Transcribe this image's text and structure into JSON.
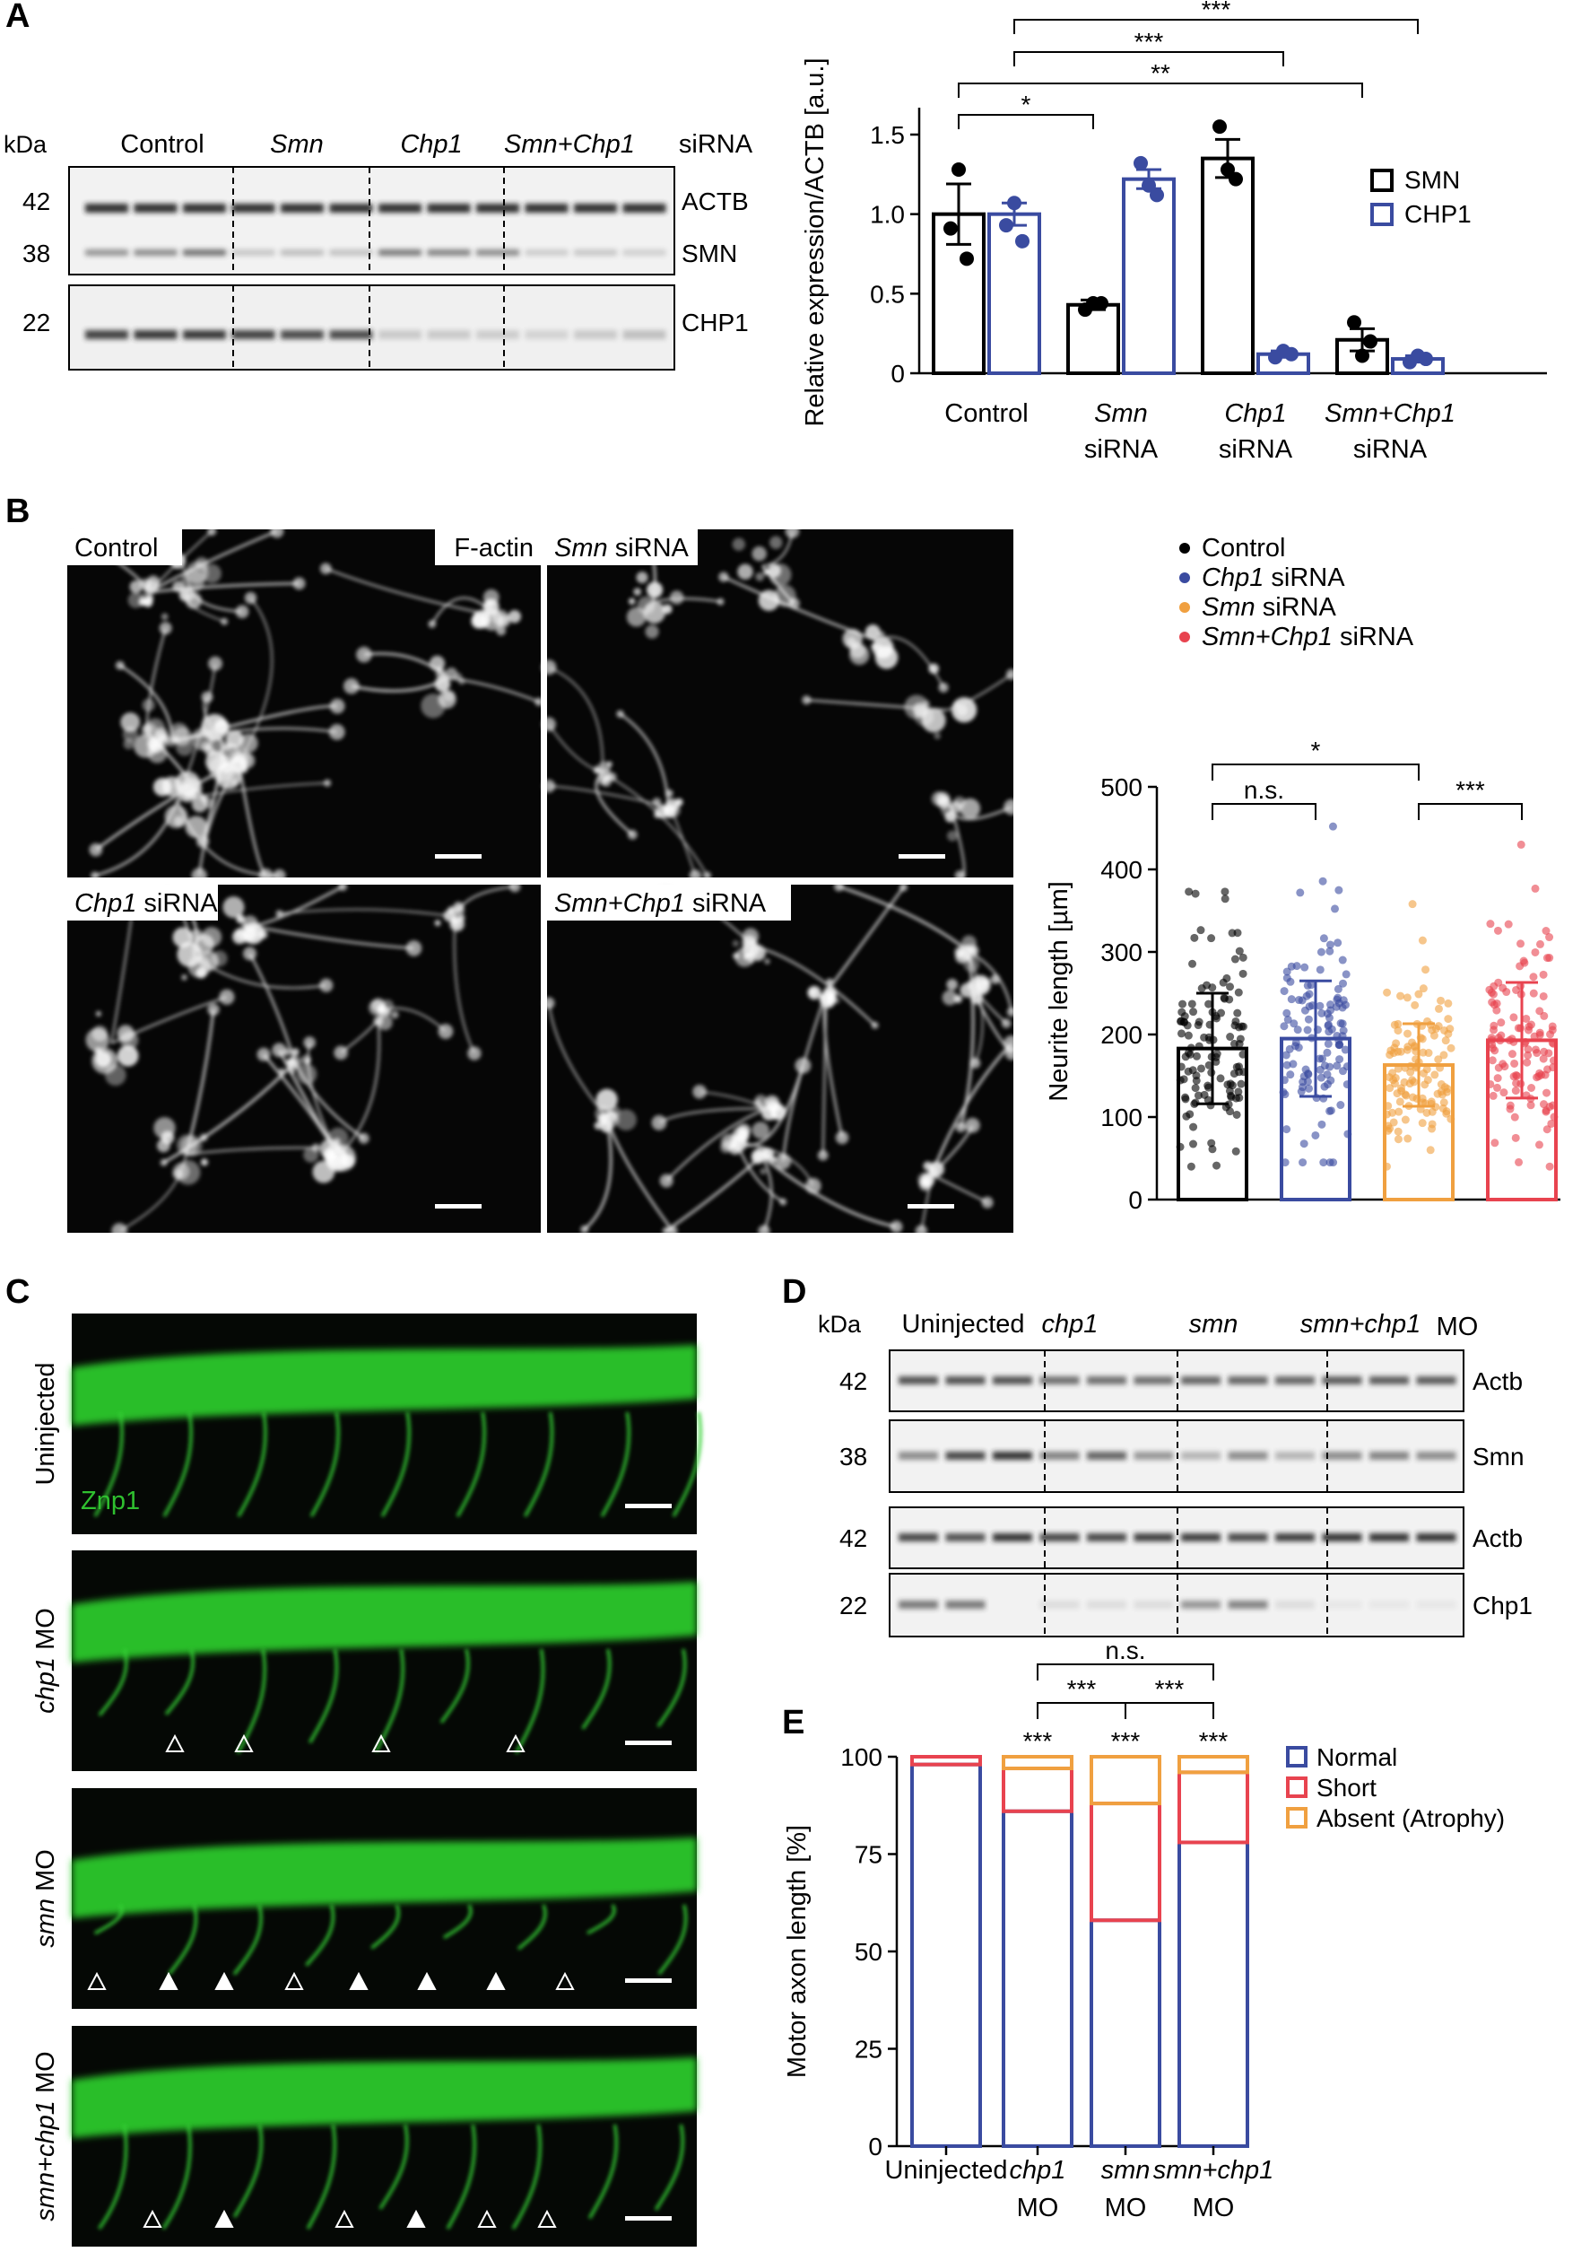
{
  "panel_letters": {
    "a": "A",
    "b": "B",
    "c": "C",
    "d": "D",
    "e": "E"
  },
  "panel_a": {
    "blot": {
      "kda_label": "kDa",
      "lanes": [
        {
          "gene": "Control",
          "italic": false
        },
        {
          "gene": "Smn",
          "italic": true
        },
        {
          "gene": "Chp1",
          "italic": true
        },
        {
          "gene": "Smn+Chp1",
          "italic": true
        }
      ],
      "lane_suffix": "siRNA",
      "rows": [
        {
          "kda": "42",
          "protein": "ACTB"
        },
        {
          "kda": "38",
          "protein": "SMN"
        },
        {
          "kda": "22",
          "protein": "CHP1"
        }
      ]
    },
    "chart": {
      "ylabel": "Relative expression/ACTB [a.u.]",
      "yticks": [
        "0",
        "0.5",
        "1.0",
        "1.5"
      ],
      "legend": [
        "SMN",
        "CHP1"
      ],
      "xlabels": [
        {
          "line1": "Control",
          "line2": "",
          "italic": false
        },
        {
          "line1": "Smn",
          "line2": "siRNA",
          "italic": true
        },
        {
          "line1": "Chp1",
          "line2": "siRNA",
          "italic": true
        },
        {
          "line1": "Smn+Chp1",
          "line2": "siRNA",
          "italic": true
        }
      ],
      "sig": [
        "*",
        "**",
        "***",
        "***"
      ]
    }
  },
  "panel_b": {
    "images": [
      {
        "name": "Control",
        "italic": false,
        "stain": "F-actin"
      },
      {
        "name": "Smn",
        "italic": true,
        "suffix": " siRNA"
      },
      {
        "name": "Chp1",
        "italic": true,
        "suffix": " siRNA"
      },
      {
        "name": "Smn+Chp1",
        "italic": true,
        "suffix": " siRNA"
      }
    ],
    "legend": [
      {
        "name": "Control",
        "italic": false,
        "suffix": "",
        "color": "#000000"
      },
      {
        "name": "Chp1",
        "italic": true,
        "suffix": " siRNA",
        "color": "#3a4ba0"
      },
      {
        "name": "Smn",
        "italic": true,
        "suffix": " siRNA",
        "color": "#f0a040"
      },
      {
        "name": "Smn+Chp1",
        "italic": true,
        "suffix": " siRNA",
        "color": "#e8434f"
      }
    ],
    "chart": {
      "ylabel": "Neurite length [µm]",
      "yticks": [
        "0",
        "100",
        "200",
        "300",
        "400",
        "500"
      ],
      "sig": [
        "n.s.",
        "*",
        "***"
      ]
    }
  },
  "panel_c": {
    "rows": [
      {
        "label": "Uninjected",
        "italic_part": "",
        "rest": "Uninjected"
      },
      {
        "label": "chp1 MO",
        "italic_part": "chp1",
        "rest": " MO"
      },
      {
        "label": "smn MO",
        "italic_part": "smn",
        "rest": " MO"
      },
      {
        "label": "smn+chp1 MO",
        "italic_part": "smn+chp1",
        "rest": " MO"
      }
    ],
    "stain": "Znp1"
  },
  "panel_d": {
    "kda_label": "kDa",
    "lanes": [
      "Uninjected",
      "chp1",
      "smn",
      "smn+chp1"
    ],
    "lane_suffix": "MO",
    "rows": [
      {
        "kda": "42",
        "protein": "Actb"
      },
      {
        "kda": "38",
        "protein": "Smn"
      },
      {
        "kda": "42",
        "protein": "Actb"
      },
      {
        "kda": "22",
        "protein": "Chp1"
      }
    ]
  },
  "panel_e": {
    "ylabel": "Motor axon length [%]",
    "yticks": [
      "0",
      "25",
      "50",
      "75",
      "100"
    ],
    "legend": [
      {
        "label": "Normal",
        "color": "#3a4ba0"
      },
      {
        "label": "Short",
        "color": "#e8434f"
      },
      {
        "label": "Absent (Atrophy)",
        "color": "#f0a040"
      }
    ],
    "xlabels": [
      {
        "line1": "Uninjected",
        "line2": "",
        "italic": false
      },
      {
        "line1": "chp1",
        "line2": "MO",
        "italic": true
      },
      {
        "line1": "smn",
        "line2": "MO",
        "italic": true
      },
      {
        "line1": "smn+chp1",
        "line2": "MO",
        "italic": true
      }
    ],
    "sig": [
      "***",
      "***",
      "***",
      "***",
      "***",
      "n.s."
    ]
  },
  "chart_data": [
    {
      "type": "bar",
      "categories": [
        "Control",
        "Smn siRNA",
        "Chp1 siRNA",
        "Smn+Chp1 siRNA"
      ],
      "series": [
        {
          "name": "SMN",
          "values": [
            1.0,
            0.43,
            1.35,
            0.21
          ],
          "error": [
            0.19,
            0.03,
            0.12,
            0.07
          ],
          "points": [
            [
              0.91,
              1.28,
              0.72
            ],
            [
              0.4,
              0.44,
              0.44
            ],
            [
              1.55,
              1.28,
              1.22
            ],
            [
              0.32,
              0.11,
              0.2
            ]
          ]
        },
        {
          "name": "CHP1",
          "values": [
            1.0,
            1.22,
            0.12,
            0.09
          ],
          "error": [
            0.07,
            0.06,
            0.02,
            0.02
          ],
          "points": [
            [
              0.93,
              1.07,
              0.83
            ],
            [
              1.32,
              1.18,
              1.12
            ],
            [
              0.1,
              0.14,
              0.12
            ],
            [
              0.07,
              0.11,
              0.09
            ]
          ]
        }
      ],
      "ylabel": "Relative expression/ACTB [a.u.]",
      "ylim": [
        0,
        1.5
      ],
      "legend": "right"
    },
    {
      "type": "scatter",
      "categories": [
        "Control",
        "Chp1 siRNA",
        "Smn siRNA",
        "Smn+Chp1 siRNA"
      ],
      "series": [
        {
          "name": "Control",
          "mean": 183,
          "sd": 67,
          "min": 40,
          "max": 373
        },
        {
          "name": "Chp1 siRNA",
          "mean": 195,
          "sd": 70,
          "min": 45,
          "max": 452
        },
        {
          "name": "Smn siRNA",
          "mean": 163,
          "sd": 50,
          "min": 40,
          "max": 358
        },
        {
          "name": "Smn+Chp1 siRNA",
          "mean": 193,
          "sd": 70,
          "min": 40,
          "max": 430
        }
      ],
      "ylabel": "Neurite length [µm]",
      "ylim": [
        0,
        500
      ],
      "legend": "top"
    },
    {
      "type": "bar",
      "categories": [
        "Uninjected",
        "chp1 MO",
        "smn MO",
        "smn+chp1 MO"
      ],
      "series": [
        {
          "name": "Normal",
          "values": [
            98,
            86,
            58,
            78
          ]
        },
        {
          "name": "Short",
          "values": [
            2,
            11,
            30,
            18
          ]
        },
        {
          "name": "Absent (Atrophy)",
          "values": [
            0,
            3,
            12,
            4
          ]
        }
      ],
      "stacked": true,
      "ylabel": "Motor axon length [%]",
      "ylim": [
        0,
        100
      ],
      "legend": "top-right"
    }
  ]
}
